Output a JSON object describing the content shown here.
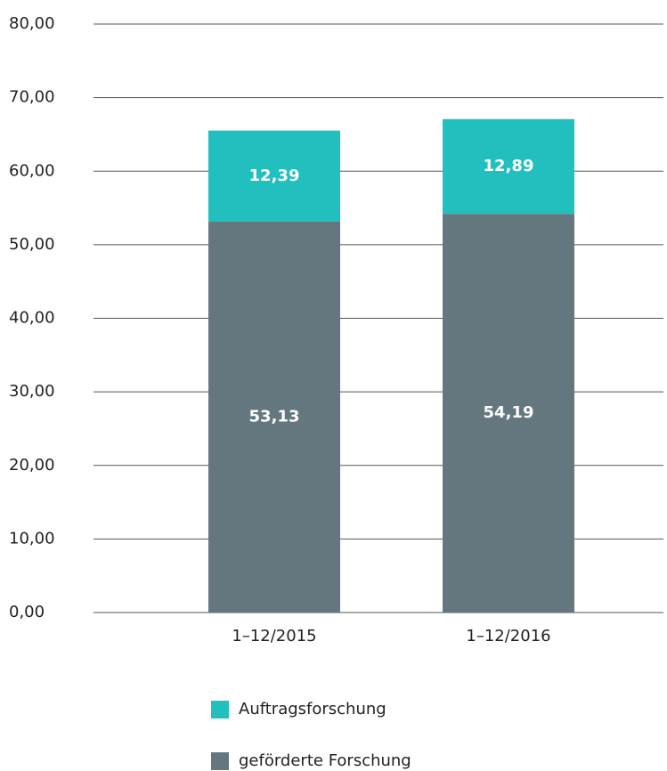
{
  "chart_data": {
    "type": "stacked_bar",
    "categories": [
      "1–12/2015",
      "1–12/2016"
    ],
    "series": [
      {
        "name": "geförderte Forschung",
        "color": "#64777f",
        "values": [
          53.13,
          54.19
        ],
        "value_labels": [
          "53,13",
          "54,19"
        ]
      },
      {
        "name": "Auftragsforschung",
        "color": "#22bfbf",
        "values": [
          12.39,
          12.89
        ],
        "value_labels": [
          "12,39",
          "12,89"
        ]
      }
    ],
    "ylim": [
      0,
      80
    ],
    "yticks": [
      {
        "value": 0,
        "label": "0,00"
      },
      {
        "value": 10,
        "label": "10,00"
      },
      {
        "value": 20,
        "label": "20,00"
      },
      {
        "value": 30,
        "label": "30,00"
      },
      {
        "value": 40,
        "label": "40,00"
      },
      {
        "value": 50,
        "label": "50,00"
      },
      {
        "value": 60,
        "label": "60,00"
      },
      {
        "value": 70,
        "label": "70,00"
      },
      {
        "value": 80,
        "label": "80,00"
      }
    ],
    "grid": true
  }
}
